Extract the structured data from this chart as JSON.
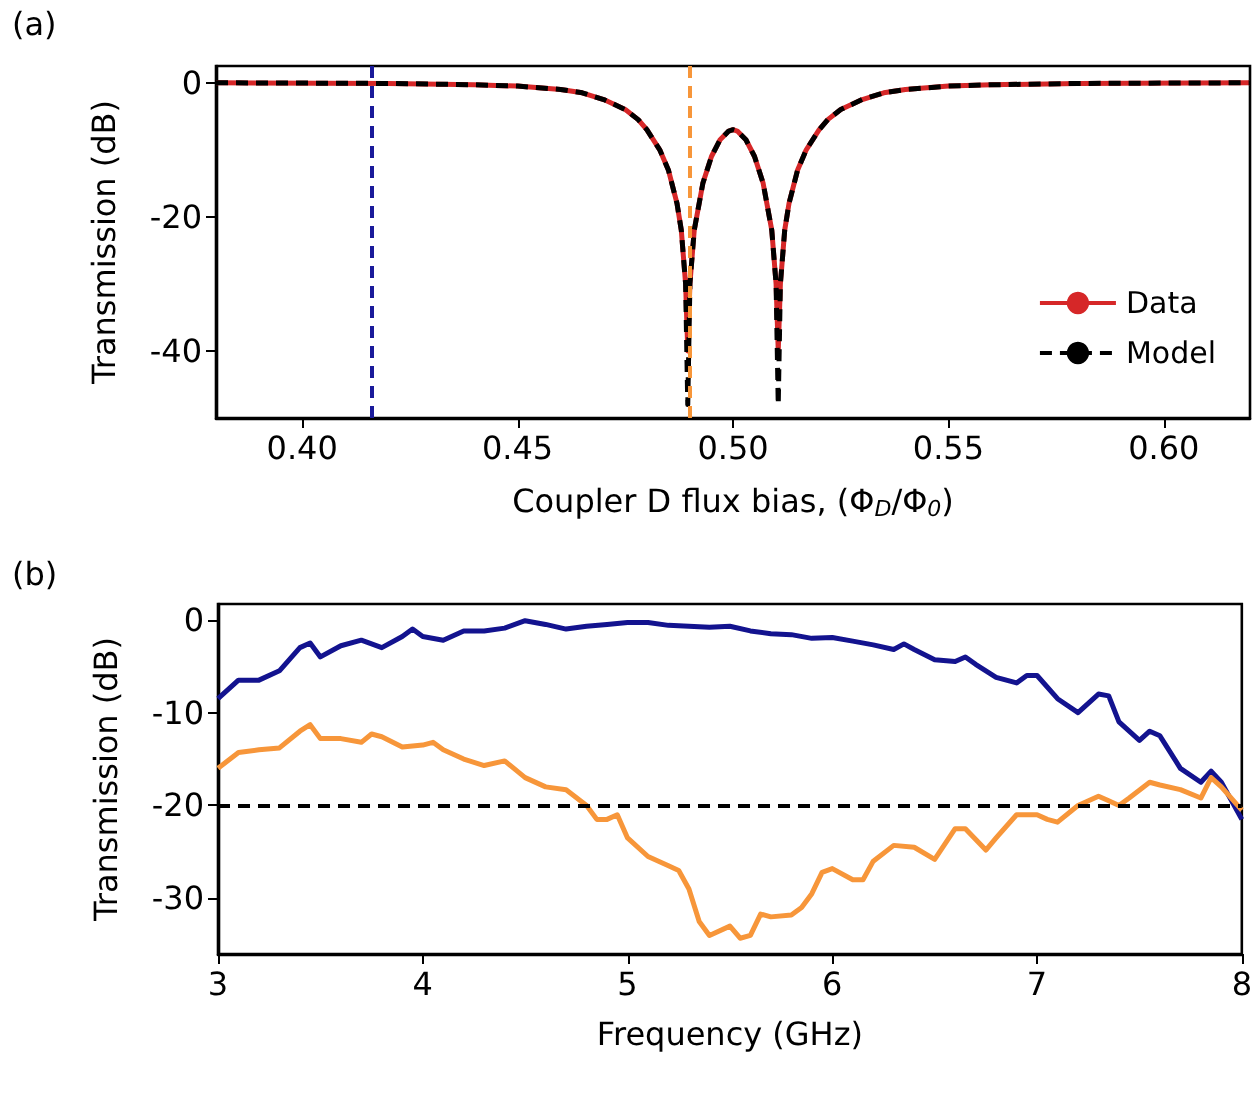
{
  "chart_data": [
    {
      "type": "line",
      "xlabel": "Coupler D flux bias, (Φ$_{D}$/Φ$_{0}$)",
      "ylabel": "Transmission (dB)",
      "annotations": [
        "(a)"
      ],
      "xlim": [
        0.38,
        0.62
      ],
      "xticks": [
        {
          "value": 0.4,
          "label": "0.40"
        },
        {
          "value": 0.45,
          "label": "0.45"
        },
        {
          "value": 0.5,
          "label": "0.50"
        },
        {
          "value": 0.55,
          "label": "0.55"
        },
        {
          "value": 0.6,
          "label": "0.60"
        }
      ],
      "ylim": [
        -50,
        2.5
      ],
      "yticks": [
        0,
        -20,
        -40
      ],
      "grid": false,
      "legend": "bottom right",
      "x": [
        0.38,
        0.42,
        0.44,
        0.45,
        0.46,
        0.465,
        0.47,
        0.475,
        0.478,
        0.48,
        0.483,
        0.485,
        0.487,
        0.488,
        0.489,
        0.4895,
        0.49,
        0.491,
        0.493,
        0.495,
        0.497,
        0.499,
        0.5,
        0.501,
        0.503,
        0.505,
        0.507,
        0.509,
        0.51,
        0.5105,
        0.511,
        0.512,
        0.513,
        0.515,
        0.517,
        0.52,
        0.522,
        0.525,
        0.53,
        0.535,
        0.54,
        0.55,
        0.56,
        0.58,
        0.62
      ],
      "series": [
        {
          "name": "Data",
          "color": "#d62728",
          "line_style": "solid",
          "values": [
            0,
            -0.1,
            -0.3,
            -0.5,
            -1,
            -1.5,
            -2.5,
            -4,
            -5.5,
            -7,
            -10,
            -13,
            -18,
            -22,
            -30,
            -40,
            -30,
            -22,
            -15,
            -11,
            -8.5,
            -7.2,
            -7,
            -7.2,
            -8.5,
            -11,
            -15,
            -22,
            -30,
            -40,
            -30,
            -22,
            -18,
            -13,
            -10,
            -7,
            -5.5,
            -4,
            -2.5,
            -1.5,
            -1,
            -0.5,
            -0.3,
            -0.1,
            0
          ]
        },
        {
          "name": "Model",
          "color": "#000000",
          "line_style": "dashed",
          "values": [
            0,
            -0.1,
            -0.3,
            -0.5,
            -1,
            -1.5,
            -2.5,
            -4,
            -5.5,
            -7,
            -10,
            -13,
            -18,
            -22,
            -30,
            -48,
            -30,
            -22,
            -15,
            -11,
            -8.5,
            -7.2,
            -7,
            -7.2,
            -8.5,
            -11,
            -15,
            -22,
            -30,
            -48,
            -30,
            -22,
            -18,
            -13,
            -10,
            -7,
            -5.5,
            -4,
            -2.5,
            -1.5,
            -1,
            -0.5,
            -0.3,
            -0.1,
            0
          ]
        }
      ],
      "ref_lines": [
        {
          "axis": "x",
          "value": 0.416,
          "label": null,
          "color": "#1a1a9a",
          "line_style": "dashed"
        },
        {
          "axis": "x",
          "value": 0.49,
          "label": null,
          "color": "#f7963a",
          "line_style": "dashed"
        }
      ]
    },
    {
      "type": "line",
      "xlabel": "Frequency (GHz)",
      "ylabel": "Transmission (dB)",
      "annotations": [
        "(b)"
      ],
      "xlim": [
        3,
        8
      ],
      "xticks": [
        3,
        4,
        5,
        6,
        7,
        8
      ],
      "ylim": [
        -36,
        1.7
      ],
      "yticks": [
        0,
        -10,
        -20,
        -30
      ],
      "grid": false,
      "legend": false,
      "series": [
        {
          "color": "#13138f",
          "line_style": "solid",
          "x": [
            3.0,
            3.1,
            3.2,
            3.3,
            3.4,
            3.45,
            3.5,
            3.6,
            3.7,
            3.8,
            3.9,
            3.95,
            4.0,
            4.1,
            4.2,
            4.3,
            4.4,
            4.5,
            4.6,
            4.7,
            4.8,
            4.9,
            5.0,
            5.1,
            5.2,
            5.3,
            5.4,
            5.5,
            5.6,
            5.7,
            5.8,
            5.9,
            6.0,
            6.1,
            6.2,
            6.3,
            6.35,
            6.4,
            6.5,
            6.6,
            6.65,
            6.7,
            6.8,
            6.9,
            6.95,
            7.0,
            7.1,
            7.2,
            7.3,
            7.35,
            7.4,
            7.5,
            7.55,
            7.6,
            7.7,
            7.8,
            7.85,
            7.9,
            8.0
          ],
          "values": [
            -8.5,
            -6.5,
            -6.5,
            -5.5,
            -3,
            -2.5,
            -4,
            -2.8,
            -2.2,
            -3,
            -1.8,
            -1,
            -1.8,
            -2.2,
            -1.2,
            -1.2,
            -0.9,
            -0.1,
            -0.5,
            -1,
            -0.7,
            -0.5,
            -0.3,
            -0.3,
            -0.6,
            -0.7,
            -0.8,
            -0.7,
            -1.2,
            -1.5,
            -1.6,
            -2,
            -1.9,
            -2.3,
            -2.7,
            -3.2,
            -2.6,
            -3.2,
            -4.3,
            -4.5,
            -4,
            -4.8,
            -6.2,
            -6.8,
            -6,
            -6,
            -8.5,
            -10,
            -8,
            -8.2,
            -11,
            -13,
            -12,
            -12.5,
            -16,
            -17.5,
            -16.3,
            -17.5,
            -21.5
          ]
        },
        {
          "color": "#f7963a",
          "line_style": "solid",
          "x": [
            3.0,
            3.1,
            3.2,
            3.3,
            3.4,
            3.45,
            3.5,
            3.6,
            3.7,
            3.75,
            3.8,
            3.9,
            4.0,
            4.05,
            4.1,
            4.2,
            4.3,
            4.4,
            4.5,
            4.6,
            4.7,
            4.8,
            4.85,
            4.9,
            4.95,
            5.0,
            5.1,
            5.2,
            5.25,
            5.3,
            5.35,
            5.4,
            5.5,
            5.55,
            5.6,
            5.65,
            5.7,
            5.8,
            5.85,
            5.9,
            5.95,
            6.0,
            6.1,
            6.15,
            6.2,
            6.3,
            6.4,
            6.5,
            6.6,
            6.65,
            6.75,
            6.8,
            6.9,
            7.0,
            7.05,
            7.1,
            7.2,
            7.3,
            7.35,
            7.4,
            7.45,
            7.55,
            7.6,
            7.7,
            7.8,
            7.85,
            7.9,
            8.0
          ],
          "values": [
            -16,
            -14.3,
            -14,
            -13.8,
            -12,
            -11.3,
            -12.8,
            -12.8,
            -13.2,
            -12.3,
            -12.6,
            -13.7,
            -13.5,
            -13.2,
            -14,
            -15,
            -15.7,
            -15.2,
            -17,
            -18,
            -18.3,
            -20,
            -21.5,
            -21.5,
            -21,
            -23.5,
            -25.5,
            -26.5,
            -27,
            -29,
            -32.5,
            -34,
            -33,
            -34.3,
            -34,
            -31.7,
            -32,
            -31.8,
            -31,
            -29.5,
            -27.2,
            -26.8,
            -28,
            -28,
            -26,
            -24.3,
            -24.5,
            -25.8,
            -22.5,
            -22.5,
            -24.8,
            -23.5,
            -21,
            -21,
            -21.5,
            -21.8,
            -20,
            -19,
            -19.5,
            -20,
            -19.2,
            -17.5,
            -17.8,
            -18.3,
            -19.2,
            -17,
            -18,
            -20.5
          ]
        }
      ],
      "ref_lines": [
        {
          "axis": "y",
          "value": -20,
          "label": null,
          "color": "#000000",
          "line_style": "dashed"
        }
      ]
    }
  ]
}
